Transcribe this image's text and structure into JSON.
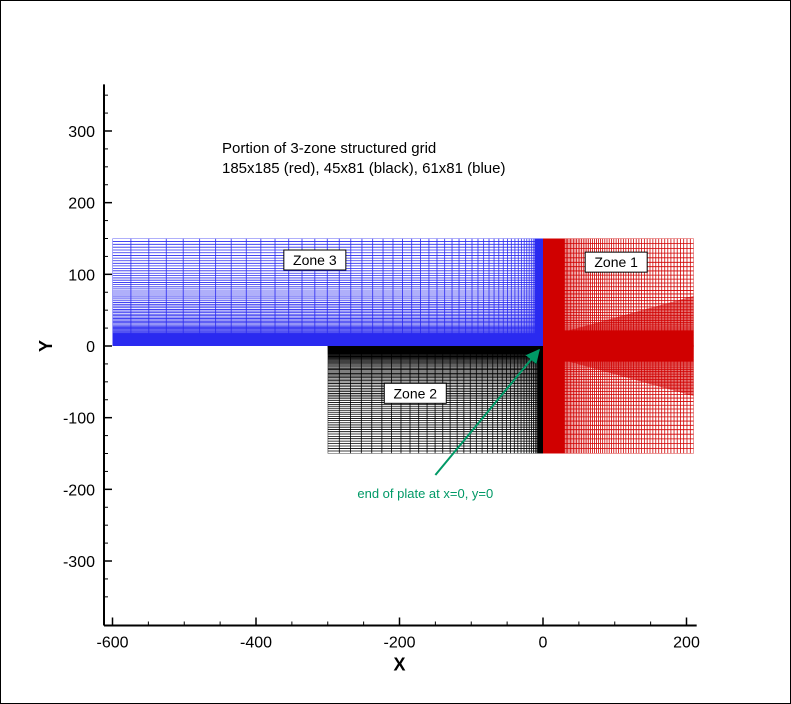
{
  "chart_data": {
    "type": "diagram",
    "title_lines": [
      "Portion of 3-zone structured grid",
      "185x185 (red), 45x81 (black), 61x81 (blue)"
    ],
    "xlabel": "X",
    "ylabel": "Y",
    "xlim": [
      -600,
      210
    ],
    "ylim": [
      -390,
      365
    ],
    "x_ticks": [
      -600,
      -400,
      -200,
      0,
      200
    ],
    "x_tick_labels": [
      "-600",
      "-400",
      "-200",
      "0",
      "200"
    ],
    "y_ticks": [
      -300,
      -200,
      -100,
      0,
      100,
      200,
      300
    ],
    "y_tick_labels": [
      "-300",
      "-200",
      "-100",
      "0",
      "100",
      "200",
      "300"
    ],
    "zones": [
      {
        "label": "Zone 1",
        "color": "#d00000",
        "x_range": [
          0,
          210
        ],
        "y_range": [
          -150,
          150
        ],
        "grid": "185x185"
      },
      {
        "label": "Zone 2",
        "color": "#000000",
        "x_range": [
          -300,
          0
        ],
        "y_range": [
          -150,
          0
        ],
        "grid": "45x81"
      },
      {
        "label": "Zone 3",
        "color": "#2a2af0",
        "x_range": [
          -600,
          0
        ],
        "y_range": [
          0,
          150
        ],
        "grid": "61x81"
      }
    ],
    "annotation": {
      "text": "end of plate at x=0, y=0",
      "color": "#009966",
      "point": [
        0,
        0
      ]
    }
  }
}
